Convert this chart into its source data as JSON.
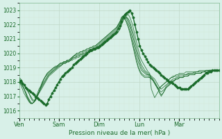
{
  "bg_color": "#d8f0e8",
  "grid_color": "#b0d8c0",
  "line_color": "#1a6b2a",
  "ylabel": "Pression niveau de la mer( hPa )",
  "ylim": [
    1015.5,
    1023.5
  ],
  "yticks": [
    1016,
    1017,
    1018,
    1019,
    1020,
    1021,
    1022,
    1023
  ],
  "day_labels": [
    "Ven",
    "Sam",
    "Dim",
    "Lun",
    "Mar"
  ],
  "day_positions": [
    0,
    24,
    48,
    72,
    96
  ],
  "total_hours": 120,
  "series": [
    [
      1018.0,
      1018.1,
      1017.9,
      1017.8,
      1017.6,
      1017.5,
      1017.4,
      1017.3,
      1017.2,
      1017.1,
      1017.0,
      1016.9,
      1016.8,
      1016.7,
      1016.6,
      1016.5,
      1016.4,
      1016.5,
      1016.8,
      1017.0,
      1017.2,
      1017.4,
      1017.6,
      1017.8,
      1018.0,
      1018.2,
      1018.4,
      1018.5,
      1018.6,
      1018.7,
      1018.8,
      1018.9,
      1019.0,
      1019.2,
      1019.3,
      1019.4,
      1019.5,
      1019.6,
      1019.7,
      1019.8,
      1019.9,
      1020.0,
      1020.1,
      1020.2,
      1020.2,
      1020.3,
      1020.3,
      1020.4,
      1020.4,
      1020.5,
      1020.6,
      1020.7,
      1020.8,
      1020.9,
      1021.0,
      1021.1,
      1021.2,
      1021.3,
      1021.4,
      1021.5,
      1021.7,
      1021.9,
      1022.2,
      1022.5,
      1022.7,
      1022.8,
      1022.9,
      1023.0,
      1022.8,
      1022.5,
      1022.0,
      1021.5,
      1021.0,
      1020.5,
      1020.2,
      1020.0,
      1019.8,
      1019.6,
      1019.4,
      1019.2,
      1019.1,
      1019.0,
      1018.9,
      1018.8,
      1018.7,
      1018.6,
      1018.5,
      1018.4,
      1018.3,
      1018.2,
      1018.1,
      1018.0,
      1018.0,
      1017.9,
      1017.8,
      1017.7,
      1017.6,
      1017.6,
      1017.5,
      1017.5,
      1017.5,
      1017.5,
      1017.5,
      1017.6,
      1017.7,
      1017.8,
      1017.9,
      1018.0,
      1018.1,
      1018.2,
      1018.3,
      1018.4,
      1018.5,
      1018.6,
      1018.6,
      1018.7,
      1018.7,
      1018.8,
      1018.8,
      1018.8,
      1018.8,
      1018.8
    ],
    [
      1018.0,
      1017.8,
      1017.5,
      1017.2,
      1017.0,
      1016.8,
      1016.6,
      1016.5,
      1016.5,
      1016.6,
      1016.8,
      1017.0,
      1017.2,
      1017.4,
      1017.6,
      1017.8,
      1018.0,
      1018.2,
      1018.4,
      1018.5,
      1018.6,
      1018.7,
      1018.8,
      1018.9,
      1019.0,
      1019.1,
      1019.2,
      1019.3,
      1019.3,
      1019.4,
      1019.4,
      1019.5,
      1019.5,
      1019.6,
      1019.6,
      1019.7,
      1019.7,
      1019.8,
      1019.8,
      1019.9,
      1019.9,
      1020.0,
      1020.0,
      1020.1,
      1020.1,
      1020.2,
      1020.2,
      1020.3,
      1020.3,
      1020.4,
      1020.5,
      1020.6,
      1020.7,
      1020.8,
      1020.9,
      1021.0,
      1021.1,
      1021.2,
      1021.3,
      1021.4,
      1021.5,
      1021.7,
      1022.0,
      1022.3,
      1022.5,
      1022.6,
      1022.7,
      1022.5,
      1022.2,
      1021.8,
      1021.3,
      1020.8,
      1020.3,
      1019.8,
      1019.5,
      1019.3,
      1019.1,
      1018.9,
      1018.7,
      1018.6,
      1017.5,
      1017.2,
      1016.9,
      1017.1,
      1017.3,
      1017.5,
      1017.7,
      1017.8,
      1017.9,
      1018.0,
      1018.1,
      1018.2,
      1018.3,
      1018.4,
      1018.4,
      1018.5,
      1018.5,
      1018.6,
      1018.6,
      1018.6,
      1018.6,
      1018.7,
      1018.7,
      1018.7,
      1018.7,
      1018.7,
      1018.7,
      1018.7,
      1018.7,
      1018.8,
      1018.8,
      1018.8,
      1018.8,
      1018.8,
      1018.8,
      1018.8,
      1018.8,
      1018.8,
      1018.8,
      1018.8,
      1018.8,
      1018.8
    ],
    [
      1018.1,
      1018.0,
      1017.8,
      1017.5,
      1017.2,
      1016.9,
      1016.7,
      1016.5,
      1016.5,
      1016.6,
      1016.8,
      1017.0,
      1017.3,
      1017.5,
      1017.7,
      1017.9,
      1018.1,
      1018.3,
      1018.5,
      1018.6,
      1018.7,
      1018.8,
      1018.9,
      1019.0,
      1019.1,
      1019.1,
      1019.2,
      1019.3,
      1019.3,
      1019.4,
      1019.4,
      1019.5,
      1019.6,
      1019.7,
      1019.7,
      1019.8,
      1019.8,
      1019.9,
      1019.9,
      1020.0,
      1020.0,
      1020.1,
      1020.1,
      1020.2,
      1020.2,
      1020.3,
      1020.3,
      1020.4,
      1020.4,
      1020.5,
      1020.6,
      1020.7,
      1020.7,
      1020.8,
      1020.9,
      1021.0,
      1021.1,
      1021.2,
      1021.3,
      1021.4,
      1021.5,
      1021.7,
      1022.0,
      1022.3,
      1022.4,
      1022.5,
      1022.4,
      1022.2,
      1021.8,
      1021.4,
      1020.9,
      1020.4,
      1019.9,
      1019.5,
      1019.2,
      1019.0,
      1018.8,
      1018.7,
      1018.6,
      1018.5,
      1018.3,
      1018.1,
      1017.9,
      1017.7,
      1017.5,
      1017.6,
      1017.7,
      1017.8,
      1017.9,
      1018.0,
      1018.1,
      1018.2,
      1018.3,
      1018.3,
      1018.4,
      1018.4,
      1018.4,
      1018.5,
      1018.5,
      1018.5,
      1018.5,
      1018.5,
      1018.6,
      1018.6,
      1018.6,
      1018.6,
      1018.7,
      1018.7,
      1018.7,
      1018.7,
      1018.7,
      1018.7,
      1018.7,
      1018.8,
      1018.8,
      1018.8,
      1018.8,
      1018.8,
      1018.8,
      1018.8,
      1018.8,
      1018.8
    ],
    [
      1018.2,
      1018.0,
      1017.8,
      1017.5,
      1017.3,
      1017.0,
      1016.8,
      1016.6,
      1016.5,
      1016.6,
      1016.8,
      1017.1,
      1017.3,
      1017.6,
      1017.8,
      1018.0,
      1018.2,
      1018.4,
      1018.5,
      1018.6,
      1018.7,
      1018.8,
      1018.9,
      1019.0,
      1019.1,
      1019.2,
      1019.2,
      1019.3,
      1019.3,
      1019.4,
      1019.4,
      1019.5,
      1019.6,
      1019.7,
      1019.7,
      1019.8,
      1019.8,
      1019.9,
      1019.9,
      1020.0,
      1020.0,
      1020.1,
      1020.1,
      1020.2,
      1020.2,
      1020.3,
      1020.3,
      1020.4,
      1020.5,
      1020.6,
      1020.7,
      1020.8,
      1020.9,
      1021.0,
      1021.1,
      1021.2,
      1021.3,
      1021.4,
      1021.5,
      1021.6,
      1021.8,
      1022.0,
      1022.3,
      1022.5,
      1022.6,
      1022.5,
      1022.3,
      1022.0,
      1021.6,
      1021.1,
      1020.6,
      1020.1,
      1019.7,
      1019.3,
      1019.0,
      1018.8,
      1018.7,
      1018.6,
      1018.5,
      1018.5,
      1018.4,
      1018.3,
      1018.2,
      1018.0,
      1017.8,
      1017.6,
      1017.5,
      1017.6,
      1017.7,
      1017.8,
      1017.9,
      1018.0,
      1018.1,
      1018.2,
      1018.2,
      1018.3,
      1018.3,
      1018.4,
      1018.4,
      1018.4,
      1018.5,
      1018.5,
      1018.5,
      1018.6,
      1018.6,
      1018.6,
      1018.6,
      1018.7,
      1018.7,
      1018.7,
      1018.7,
      1018.7,
      1018.7,
      1018.8,
      1018.8,
      1018.8,
      1018.8,
      1018.8,
      1018.8,
      1018.8,
      1018.8,
      1018.8
    ],
    [
      1018.0,
      1017.9,
      1017.7,
      1017.5,
      1017.2,
      1016.9,
      1016.7,
      1016.5,
      1016.5,
      1016.6,
      1016.9,
      1017.2,
      1017.5,
      1017.7,
      1018.0,
      1018.2,
      1018.4,
      1018.5,
      1018.6,
      1018.7,
      1018.8,
      1018.9,
      1019.0,
      1019.1,
      1019.2,
      1019.3,
      1019.3,
      1019.4,
      1019.4,
      1019.5,
      1019.5,
      1019.6,
      1019.7,
      1019.8,
      1019.8,
      1019.9,
      1019.9,
      1020.0,
      1020.0,
      1020.1,
      1020.1,
      1020.2,
      1020.2,
      1020.3,
      1020.3,
      1020.4,
      1020.4,
      1020.5,
      1020.6,
      1020.7,
      1020.8,
      1020.9,
      1021.0,
      1021.1,
      1021.2,
      1021.3,
      1021.4,
      1021.5,
      1021.6,
      1021.7,
      1021.9,
      1022.1,
      1022.4,
      1022.6,
      1022.5,
      1022.4,
      1022.1,
      1021.8,
      1021.3,
      1020.8,
      1020.3,
      1019.8,
      1019.4,
      1019.1,
      1018.8,
      1018.7,
      1018.6,
      1018.5,
      1018.5,
      1018.4,
      1018.3,
      1018.2,
      1018.0,
      1017.8,
      1017.6,
      1017.4,
      1017.3,
      1017.4,
      1017.5,
      1017.7,
      1017.8,
      1017.9,
      1018.0,
      1018.1,
      1018.1,
      1018.2,
      1018.2,
      1018.3,
      1018.3,
      1018.3,
      1018.4,
      1018.4,
      1018.4,
      1018.5,
      1018.5,
      1018.5,
      1018.5,
      1018.6,
      1018.6,
      1018.6,
      1018.6,
      1018.7,
      1018.7,
      1018.7,
      1018.7,
      1018.8,
      1018.8,
      1018.8,
      1018.8,
      1018.8,
      1018.8,
      1018.8
    ],
    [
      1018.2,
      1018.1,
      1018.0,
      1017.8,
      1017.6,
      1017.4,
      1017.2,
      1017.0,
      1016.8,
      1016.7,
      1016.8,
      1017.0,
      1017.3,
      1017.6,
      1017.9,
      1018.2,
      1018.4,
      1018.6,
      1018.7,
      1018.8,
      1018.9,
      1019.0,
      1019.1,
      1019.1,
      1019.2,
      1019.3,
      1019.3,
      1019.4,
      1019.4,
      1019.5,
      1019.5,
      1019.6,
      1019.7,
      1019.8,
      1019.9,
      1020.0,
      1020.0,
      1020.1,
      1020.1,
      1020.2,
      1020.2,
      1020.3,
      1020.3,
      1020.4,
      1020.4,
      1020.5,
      1020.5,
      1020.6,
      1020.7,
      1020.8,
      1020.9,
      1021.0,
      1021.1,
      1021.2,
      1021.3,
      1021.4,
      1021.5,
      1021.6,
      1021.7,
      1021.8,
      1022.0,
      1022.2,
      1022.5,
      1022.6,
      1022.4,
      1022.2,
      1021.9,
      1021.5,
      1021.0,
      1020.5,
      1020.0,
      1019.5,
      1019.1,
      1018.8,
      1018.6,
      1018.5,
      1018.4,
      1018.4,
      1018.4,
      1018.3,
      1018.2,
      1018.1,
      1017.9,
      1017.7,
      1017.5,
      1017.3,
      1017.1,
      1017.2,
      1017.4,
      1017.6,
      1017.7,
      1017.8,
      1017.9,
      1018.0,
      1018.1,
      1018.2,
      1018.2,
      1018.3,
      1018.3,
      1018.3,
      1018.4,
      1018.4,
      1018.4,
      1018.5,
      1018.5,
      1018.5,
      1018.5,
      1018.6,
      1018.6,
      1018.6,
      1018.6,
      1018.7,
      1018.7,
      1018.7,
      1018.7,
      1018.8,
      1018.8,
      1018.8,
      1018.8,
      1018.8,
      1018.8,
      1018.8
    ],
    [
      1018.3,
      1018.2,
      1018.0,
      1017.8,
      1017.6,
      1017.4,
      1017.2,
      1016.9,
      1016.7,
      1016.6,
      1016.7,
      1017.0,
      1017.3,
      1017.6,
      1017.9,
      1018.2,
      1018.4,
      1018.6,
      1018.7,
      1018.8,
      1018.9,
      1019.0,
      1019.0,
      1019.1,
      1019.2,
      1019.3,
      1019.3,
      1019.4,
      1019.4,
      1019.5,
      1019.5,
      1019.6,
      1019.7,
      1019.8,
      1019.9,
      1020.0,
      1020.0,
      1020.1,
      1020.1,
      1020.2,
      1020.2,
      1020.3,
      1020.3,
      1020.4,
      1020.4,
      1020.5,
      1020.5,
      1020.6,
      1020.7,
      1020.8,
      1020.9,
      1021.0,
      1021.1,
      1021.2,
      1021.3,
      1021.4,
      1021.5,
      1021.6,
      1021.7,
      1021.8,
      1022.0,
      1022.2,
      1022.5,
      1022.6,
      1022.4,
      1022.1,
      1021.8,
      1021.4,
      1020.9,
      1020.4,
      1019.9,
      1019.4,
      1019.0,
      1018.7,
      1018.5,
      1018.4,
      1018.3,
      1018.3,
      1018.3,
      1018.3,
      1018.2,
      1018.1,
      1017.9,
      1017.7,
      1017.5,
      1017.2,
      1017.0,
      1017.2,
      1017.4,
      1017.6,
      1017.7,
      1017.8,
      1017.9,
      1018.0,
      1018.1,
      1018.2,
      1018.2,
      1018.3,
      1018.3,
      1018.3,
      1018.4,
      1018.4,
      1018.4,
      1018.5,
      1018.5,
      1018.5,
      1018.5,
      1018.6,
      1018.6,
      1018.6,
      1018.6,
      1018.7,
      1018.7,
      1018.7,
      1018.7,
      1018.8,
      1018.8,
      1018.8,
      1018.8,
      1018.8,
      1018.8,
      1018.8
    ]
  ]
}
